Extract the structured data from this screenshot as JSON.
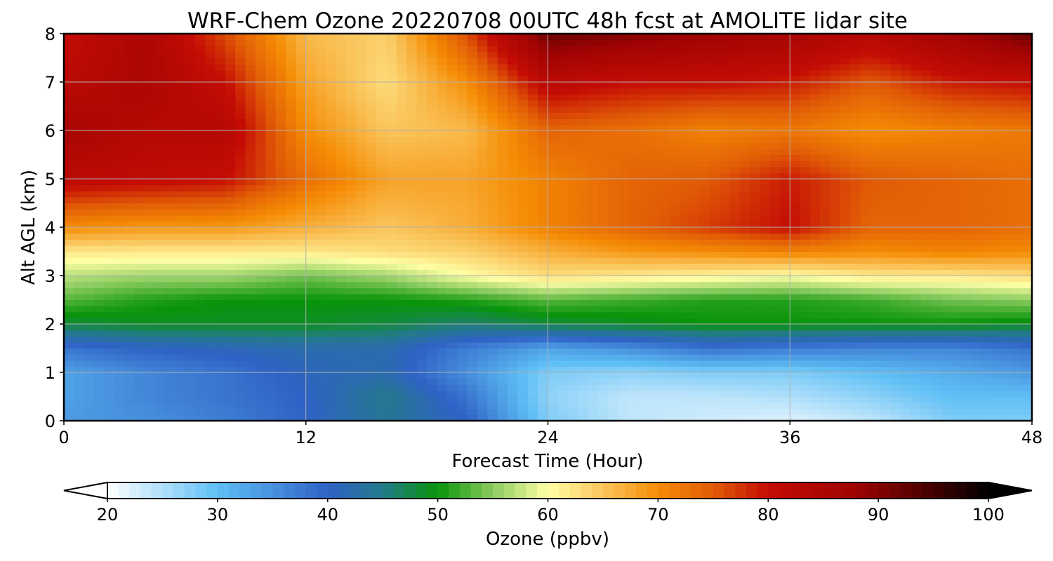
{
  "chart_data": {
    "type": "heatmap",
    "title": "WRF-Chem Ozone  20220708 00UTC 48h fcst at AMOLITE lidar site",
    "xlabel": "Forecast Time (Hour)",
    "ylabel": "Alt AGL (km)",
    "xlim": [
      0,
      48
    ],
    "ylim": [
      0,
      8
    ],
    "x_ticks": [
      "0",
      "12",
      "24",
      "36",
      "48"
    ],
    "y_ticks": [
      "0",
      "1",
      "2",
      "3",
      "4",
      "5",
      "6",
      "7",
      "8"
    ],
    "grid": true,
    "colorbar": {
      "label": "Ozone  (ppbv)",
      "range": [
        20,
        100
      ],
      "ticks": [
        "20",
        "30",
        "40",
        "50",
        "60",
        "70",
        "80",
        "90",
        "100"
      ],
      "extend": "both",
      "colors": [
        {
          "v": 20,
          "c": "#ffffff"
        },
        {
          "v": 30,
          "c": "#5fbff5"
        },
        {
          "v": 40,
          "c": "#2f62c6"
        },
        {
          "v": 45,
          "c": "#237a8a"
        },
        {
          "v": 50,
          "c": "#08940a"
        },
        {
          "v": 55,
          "c": "#8ccc60"
        },
        {
          "v": 60,
          "c": "#ffffa6"
        },
        {
          "v": 65,
          "c": "#fac55c"
        },
        {
          "v": 70,
          "c": "#f58c05"
        },
        {
          "v": 75,
          "c": "#e15b06"
        },
        {
          "v": 80,
          "c": "#c40c05"
        },
        {
          "v": 88,
          "c": "#9e0303"
        },
        {
          "v": 100,
          "c": "#000000"
        }
      ]
    },
    "time_hours": [
      0,
      4,
      8,
      12,
      16,
      20,
      24,
      28,
      32,
      36,
      40,
      44,
      48
    ],
    "alt_km": [
      0,
      0.5,
      1,
      1.5,
      2,
      2.5,
      3,
      3.5,
      4,
      5,
      6,
      7,
      8
    ],
    "ozone_ppbv": [
      [
        34,
        35,
        37,
        40,
        44,
        40,
        28,
        24,
        23,
        22,
        24,
        28,
        28
      ],
      [
        33,
        36,
        38,
        40,
        45,
        38,
        27,
        24,
        24,
        25,
        27,
        30,
        30
      ],
      [
        33,
        36,
        38,
        41,
        42,
        35,
        28,
        27,
        28,
        28,
        30,
        32,
        34
      ],
      [
        38,
        40,
        41,
        42,
        42,
        37,
        33,
        35,
        38,
        37,
        36,
        36,
        38
      ],
      [
        48,
        49,
        49,
        49,
        48,
        46,
        48,
        49,
        50,
        50,
        50,
        50,
        49
      ],
      [
        53,
        51,
        50,
        50,
        50,
        51,
        53,
        52,
        51,
        51,
        52,
        54,
        55
      ],
      [
        57,
        56,
        56,
        54,
        56,
        60,
        63,
        62,
        61,
        60,
        62,
        62,
        63
      ],
      [
        62,
        62,
        62,
        62,
        63,
        64,
        67,
        69,
        70,
        71,
        70,
        71,
        70
      ],
      [
        70,
        69,
        69,
        67,
        65,
        67,
        71,
        74,
        77,
        80,
        74,
        74,
        73
      ],
      [
        82,
        81,
        80,
        73,
        68,
        68,
        71,
        74,
        75,
        79,
        75,
        74,
        73
      ],
      [
        86,
        83,
        83,
        70,
        65,
        66,
        74,
        73,
        71,
        72,
        70,
        71,
        72
      ],
      [
        82,
        85,
        80,
        68,
        63,
        70,
        82,
        80,
        80,
        79,
        75,
        79,
        80
      ],
      [
        80,
        85,
        76,
        66,
        64,
        76,
        92,
        90,
        88,
        86,
        83,
        87,
        92
      ]
    ]
  }
}
